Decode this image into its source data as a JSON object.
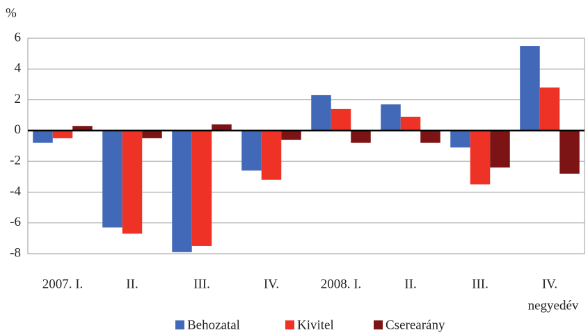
{
  "chart_data": {
    "type": "bar",
    "y_unit": "%",
    "x_label": "negyedév",
    "categories": [
      "2007. I.",
      "II.",
      "III.",
      "IV.",
      "2008. I.",
      "II.",
      "III.",
      "IV."
    ],
    "series": [
      {
        "name": "Behozatal",
        "color": "#4169b8",
        "values": [
          -0.8,
          -6.3,
          -7.9,
          -2.6,
          2.3,
          1.7,
          -1.1,
          5.5
        ]
      },
      {
        "name": "Kivitel",
        "color": "#ee3226",
        "values": [
          -0.5,
          -6.7,
          -7.5,
          -3.2,
          1.4,
          0.9,
          -3.5,
          2.8
        ]
      },
      {
        "name": "Cserearány",
        "color": "#7c1416",
        "values": [
          0.3,
          -0.5,
          0.4,
          -0.6,
          -0.8,
          -0.8,
          -2.4,
          -2.8
        ]
      }
    ],
    "ylim": [
      -8,
      6
    ],
    "yticks": [
      -8,
      -6,
      -4,
      -2,
      0,
      2,
      4,
      6
    ],
    "grid": true,
    "legend": "bottom"
  }
}
